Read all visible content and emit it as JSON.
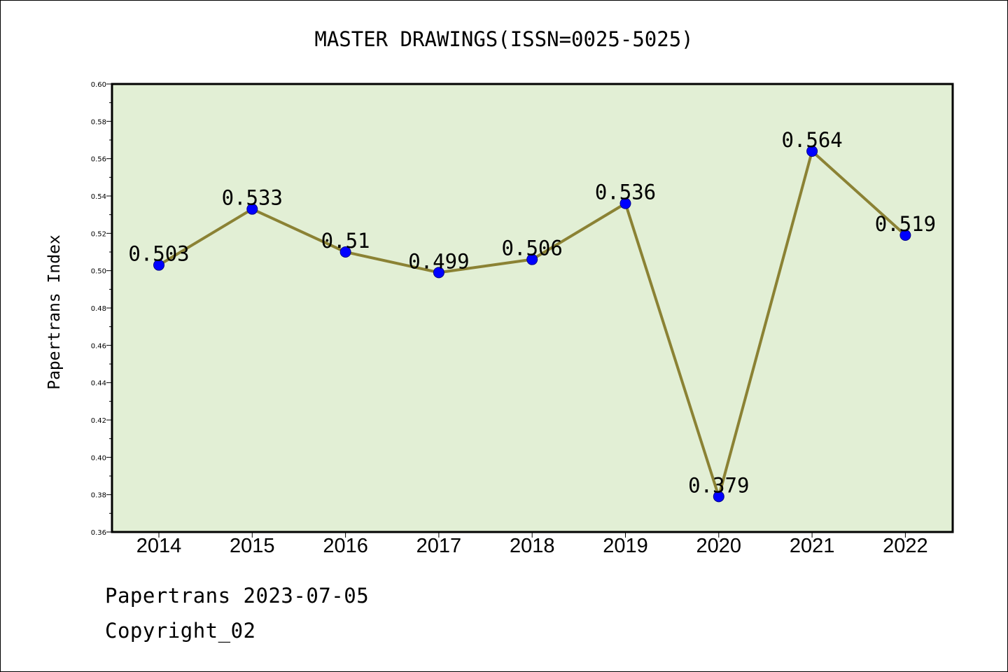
{
  "chart_data": {
    "type": "line",
    "title": "MASTER DRAWINGS(ISSN=0025-5025)",
    "xlabel": "",
    "ylabel": "Papertrans Index",
    "categories": [
      "2014",
      "2015",
      "2016",
      "2017",
      "2018",
      "2019",
      "2020",
      "2021",
      "2022"
    ],
    "series": [
      {
        "values": [
          0.503,
          0.533,
          0.51,
          0.499,
          0.506,
          0.536,
          0.379,
          0.564,
          0.519
        ],
        "data_labels": [
          "0.503",
          "0.533",
          "0.51",
          "0.499",
          "0.506",
          "0.536",
          "0.379",
          "0.564",
          "0.519"
        ]
      }
    ],
    "ylim": [
      0.36,
      0.6
    ],
    "yticks": [
      "0.36",
      "0.38",
      "0.40",
      "0.42",
      "0.44",
      "0.46",
      "0.48",
      "0.50",
      "0.52",
      "0.54",
      "0.56",
      "0.58",
      "0.60"
    ],
    "grid": false,
    "legend": "none",
    "colors": {
      "plot_background": "#e2efd5",
      "line": "#8b8234",
      "marker": "#0000ff"
    }
  },
  "footer": {
    "source": "Papertrans 2023-07-05",
    "copyright": "Copyright_02"
  }
}
